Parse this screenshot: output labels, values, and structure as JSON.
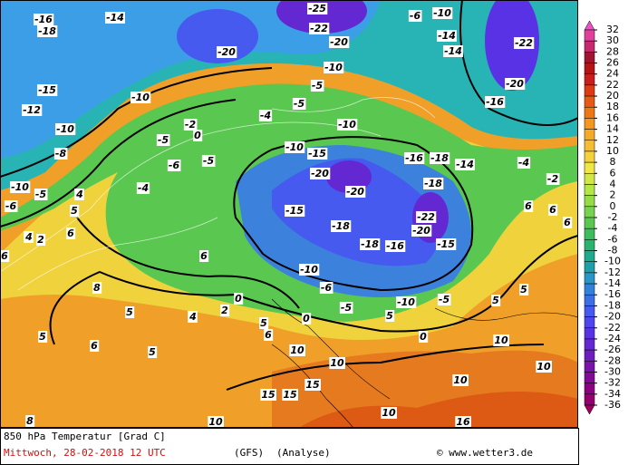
{
  "map": {
    "contour_labels": [
      -16,
      -18,
      -14,
      -15,
      -12,
      -10,
      -8,
      -10,
      -5,
      -6,
      5,
      4,
      6,
      4,
      2,
      6,
      -10,
      -5,
      -2,
      0,
      -6,
      -4,
      -5,
      -4,
      -5,
      -10,
      -20,
      -20,
      -22,
      -25,
      -10,
      -5,
      -10,
      -15,
      -20,
      -20,
      -15,
      -18,
      -18,
      -16,
      -20,
      -22,
      -15,
      -18,
      -16,
      -18,
      -14,
      -16,
      -20,
      -22,
      -14,
      -14,
      -10,
      -6,
      -4,
      -2,
      6,
      6,
      6,
      5,
      5,
      -10,
      -6,
      -5,
      -10,
      -5,
      5,
      0,
      10,
      10,
      10,
      10,
      10,
      10,
      15,
      15,
      15,
      16,
      10,
      8,
      5,
      6,
      5,
      5,
      0,
      2,
      4,
      5,
      0,
      6,
      8,
      6
    ]
  },
  "colorbar": {
    "ticks": [
      32,
      30,
      28,
      26,
      24,
      22,
      20,
      18,
      16,
      14,
      12,
      10,
      8,
      6,
      4,
      2,
      0,
      -2,
      -4,
      -6,
      -8,
      -10,
      -12,
      -14,
      -16,
      -18,
      -20,
      -22,
      -24,
      -26,
      -28,
      -30,
      -32,
      -34,
      -36
    ],
    "colors": [
      "#f050c8",
      "#e0409a",
      "#c8286e",
      "#a01432",
      "#b41414",
      "#c81e1e",
      "#dc3c14",
      "#e65a14",
      "#f07814",
      "#f5961e",
      "#f5aa28",
      "#f5be32",
      "#f5d23c",
      "#f0e646",
      "#d2e646",
      "#b4e646",
      "#96dc46",
      "#78d250",
      "#5ac850",
      "#3cbe5a",
      "#28b46e",
      "#1eaa8c",
      "#1ea0aa",
      "#2896c8",
      "#3282dc",
      "#3c6ee6",
      "#465af0",
      "#5046f0",
      "#5a32e6",
      "#6428d2",
      "#6e1ebe",
      "#7814aa",
      "#820a96",
      "#8c0082",
      "#96006e",
      "#a0005a"
    ]
  },
  "footer": {
    "title": "850 hPa Temperatur [Grad C]",
    "date": "Mittwoch, 28-02-2018  12 UTC",
    "model": "(GFS)",
    "run": "(Analyse)",
    "copyright": "© www.wetter3.de"
  }
}
